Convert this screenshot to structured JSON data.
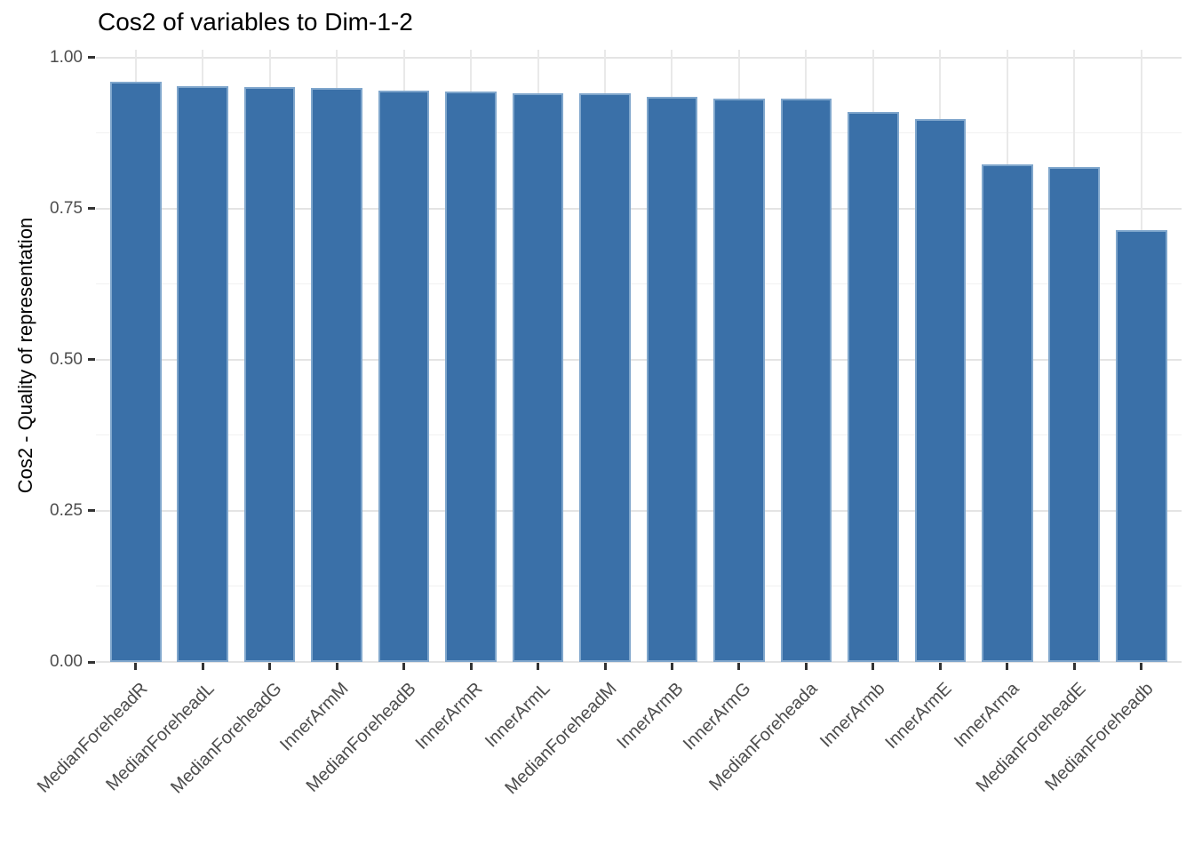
{
  "title": "Cos2 of variables to Dim-1-2",
  "y_axis": {
    "label": "Cos2 - Quality of representation",
    "ticks": [
      {
        "value": 0.0,
        "label": "0.00"
      },
      {
        "value": 0.25,
        "label": "0.25"
      },
      {
        "value": 0.5,
        "label": "0.50"
      },
      {
        "value": 0.75,
        "label": "0.75"
      },
      {
        "value": 1.0,
        "label": "1.00"
      }
    ]
  },
  "colors": {
    "bar_fill": "#3a70a8",
    "bar_border": "#7fa6cc",
    "grid_major": "#e4e4e4",
    "grid_minor": "#f1f1f1",
    "axis_text": "#4d4d4d",
    "tick_mark": "#333333",
    "background": "#ffffff"
  },
  "chart_data": {
    "type": "bar",
    "title": "Cos2 of variables to Dim-1-2",
    "xlabel": "",
    "ylabel": "Cos2 - Quality of representation",
    "ylim": [
      0,
      1.0
    ],
    "grid": true,
    "legend": "none",
    "major_breaks": [
      0.0,
      0.25,
      0.5,
      0.75,
      1.0
    ],
    "minor_breaks": [
      0.125,
      0.375,
      0.625,
      0.875
    ],
    "categories": [
      "MedianForeheadR",
      "MedianForeheadL",
      "MedianForeheadG",
      "InnerArmM",
      "MedianForeheadB",
      "InnerArmR",
      "InnerArmL",
      "MedianForeheadM",
      "InnerArmB",
      "InnerArmG",
      "MedianForeheada",
      "InnerArmb",
      "InnerArmE",
      "InnerArma",
      "MedianForeheadE",
      "MedianForeheadb"
    ],
    "values": [
      0.959,
      0.952,
      0.951,
      0.949,
      0.945,
      0.944,
      0.941,
      0.94,
      0.934,
      0.932,
      0.931,
      0.91,
      0.898,
      0.823,
      0.818,
      0.714
    ]
  }
}
